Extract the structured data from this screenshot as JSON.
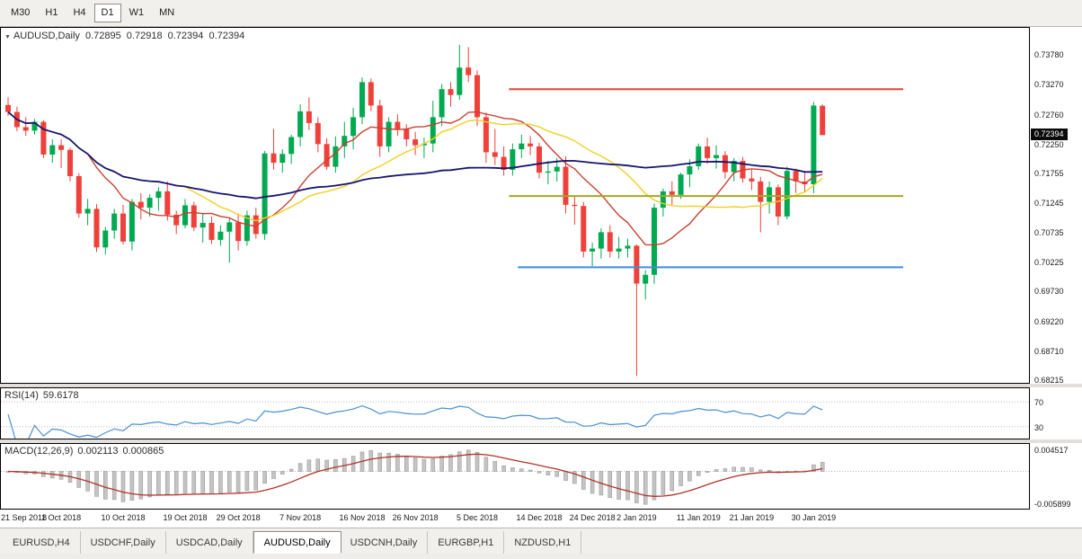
{
  "toolbar": {
    "timeframes": [
      {
        "label": "M30",
        "active": false
      },
      {
        "label": "H1",
        "active": false
      },
      {
        "label": "H4",
        "active": false
      },
      {
        "label": "D1",
        "active": true
      },
      {
        "label": "W1",
        "active": false
      },
      {
        "label": "MN",
        "active": false
      }
    ]
  },
  "chart": {
    "symbol": "AUDUSD,Daily",
    "open": "0.72895",
    "high": "0.72918",
    "low": "0.72394",
    "close": "0.72394",
    "current_price": "0.72394",
    "y_axis_labels": [
      "0.73780",
      "0.73270",
      "0.72760",
      "0.72250",
      "0.71755",
      "0.71245",
      "0.70735",
      "0.70225",
      "0.69730",
      "0.69220",
      "0.68710",
      "0.68215"
    ]
  },
  "chart_data": {
    "type": "candlestick",
    "price_range": [
      0.6812,
      0.7423
    ],
    "candle_up_color": "#00a950",
    "candle_down_color": "#ef403a",
    "candles": [
      [
        0.7291,
        0.7304,
        0.7272,
        0.7279
      ],
      [
        0.7279,
        0.7288,
        0.7246,
        0.7253
      ],
      [
        0.7253,
        0.727,
        0.7238,
        0.7247
      ],
      [
        0.7247,
        0.7267,
        0.724,
        0.7262
      ],
      [
        0.7262,
        0.7265,
        0.72,
        0.7206
      ],
      [
        0.7206,
        0.7232,
        0.7192,
        0.7222
      ],
      [
        0.7222,
        0.7232,
        0.7183,
        0.7214
      ],
      [
        0.7214,
        0.7218,
        0.716,
        0.7169
      ],
      [
        0.7169,
        0.7174,
        0.7098,
        0.7105
      ],
      [
        0.7105,
        0.713,
        0.7085,
        0.7113
      ],
      [
        0.7113,
        0.7121,
        0.7039,
        0.7047
      ],
      [
        0.7047,
        0.7082,
        0.7035,
        0.7076
      ],
      [
        0.7076,
        0.7113,
        0.7062,
        0.7105
      ],
      [
        0.7105,
        0.712,
        0.7052,
        0.7057
      ],
      [
        0.7057,
        0.713,
        0.7042,
        0.7125
      ],
      [
        0.7125,
        0.714,
        0.7095,
        0.7115
      ],
      [
        0.7115,
        0.7138,
        0.71,
        0.7132
      ],
      [
        0.7132,
        0.715,
        0.711,
        0.7143
      ],
      [
        0.7143,
        0.716,
        0.7093,
        0.7103
      ],
      [
        0.7103,
        0.711,
        0.707,
        0.7085
      ],
      [
        0.7085,
        0.713,
        0.708,
        0.7119
      ],
      [
        0.7119,
        0.7125,
        0.7075,
        0.7081
      ],
      [
        0.7081,
        0.7105,
        0.7055,
        0.7089
      ],
      [
        0.7089,
        0.71,
        0.7053,
        0.706
      ],
      [
        0.706,
        0.7085,
        0.705,
        0.7074
      ],
      [
        0.7074,
        0.7098,
        0.7021,
        0.709
      ],
      [
        0.709,
        0.7105,
        0.7042,
        0.7058
      ],
      [
        0.7058,
        0.711,
        0.705,
        0.7102
      ],
      [
        0.7102,
        0.7115,
        0.7062,
        0.707
      ],
      [
        0.707,
        0.7212,
        0.706,
        0.7208
      ],
      [
        0.7208,
        0.725,
        0.718,
        0.7192
      ],
      [
        0.7192,
        0.7215,
        0.7175,
        0.7207
      ],
      [
        0.7207,
        0.724,
        0.719,
        0.7236
      ],
      [
        0.7236,
        0.7292,
        0.722,
        0.728
      ],
      [
        0.728,
        0.7304,
        0.7248,
        0.726
      ],
      [
        0.726,
        0.727,
        0.721,
        0.7224
      ],
      [
        0.7224,
        0.7234,
        0.718,
        0.7185
      ],
      [
        0.7185,
        0.7237,
        0.7175,
        0.722
      ],
      [
        0.722,
        0.7262,
        0.72,
        0.7238
      ],
      [
        0.7238,
        0.7286,
        0.7215,
        0.727
      ],
      [
        0.727,
        0.7338,
        0.7258,
        0.733
      ],
      [
        0.733,
        0.7336,
        0.728,
        0.729
      ],
      [
        0.729,
        0.73,
        0.7202,
        0.722
      ],
      [
        0.722,
        0.727,
        0.721,
        0.7262
      ],
      [
        0.7262,
        0.7275,
        0.7238,
        0.725
      ],
      [
        0.725,
        0.7258,
        0.722,
        0.7232
      ],
      [
        0.7232,
        0.7245,
        0.7205,
        0.7222
      ],
      [
        0.7222,
        0.7235,
        0.72,
        0.7225
      ],
      [
        0.7225,
        0.7298,
        0.721,
        0.727
      ],
      [
        0.727,
        0.7327,
        0.7255,
        0.7318
      ],
      [
        0.7318,
        0.733,
        0.7288,
        0.7308
      ],
      [
        0.7308,
        0.7394,
        0.73,
        0.7355
      ],
      [
        0.7355,
        0.739,
        0.733,
        0.7342
      ],
      [
        0.7342,
        0.735,
        0.7255,
        0.727
      ],
      [
        0.727,
        0.7278,
        0.7192,
        0.721
      ],
      [
        0.721,
        0.725,
        0.7188,
        0.7202
      ],
      [
        0.7202,
        0.722,
        0.717,
        0.718
      ],
      [
        0.718,
        0.7225,
        0.717,
        0.7215
      ],
      [
        0.7215,
        0.724,
        0.72,
        0.7225
      ],
      [
        0.7225,
        0.7238,
        0.7205,
        0.722
      ],
      [
        0.722,
        0.7226,
        0.7165,
        0.7175
      ],
      [
        0.7175,
        0.7195,
        0.7155,
        0.7177
      ],
      [
        0.7177,
        0.72,
        0.716,
        0.7185
      ],
      [
        0.7185,
        0.7203,
        0.7105,
        0.712
      ],
      [
        0.712,
        0.7135,
        0.7086,
        0.7118
      ],
      [
        0.7118,
        0.7125,
        0.703,
        0.704
      ],
      [
        0.704,
        0.7055,
        0.7015,
        0.7045
      ],
      [
        0.7045,
        0.708,
        0.7028,
        0.7073
      ],
      [
        0.7073,
        0.7085,
        0.703,
        0.704
      ],
      [
        0.704,
        0.7065,
        0.7028,
        0.7045
      ],
      [
        0.7045,
        0.7062,
        0.703,
        0.705
      ],
      [
        0.705,
        0.7052,
        0.6827,
        0.6985
      ],
      [
        0.6985,
        0.7008,
        0.6958,
        0.7
      ],
      [
        0.7,
        0.7122,
        0.6985,
        0.7115
      ],
      [
        0.7115,
        0.7148,
        0.71,
        0.7143
      ],
      [
        0.7143,
        0.716,
        0.712,
        0.7137
      ],
      [
        0.7137,
        0.7175,
        0.713,
        0.7172
      ],
      [
        0.7172,
        0.7198,
        0.715,
        0.7186
      ],
      [
        0.7186,
        0.7225,
        0.718,
        0.722
      ],
      [
        0.722,
        0.7235,
        0.719,
        0.72
      ],
      [
        0.72,
        0.7222,
        0.7182,
        0.7205
      ],
      [
        0.7205,
        0.7212,
        0.7165,
        0.7176
      ],
      [
        0.7176,
        0.72,
        0.716,
        0.7195
      ],
      [
        0.7195,
        0.7202,
        0.7158,
        0.7165
      ],
      [
        0.7165,
        0.718,
        0.7145,
        0.716
      ],
      [
        0.716,
        0.7168,
        0.7073,
        0.7125
      ],
      [
        0.7125,
        0.716,
        0.7105,
        0.715
      ],
      [
        0.715,
        0.7155,
        0.7085,
        0.71
      ],
      [
        0.71,
        0.7185,
        0.7095,
        0.7178
      ],
      [
        0.7178,
        0.7182,
        0.714,
        0.716
      ],
      [
        0.716,
        0.7178,
        0.7142,
        0.7155
      ],
      [
        0.7155,
        0.7296,
        0.714,
        0.729
      ],
      [
        0.72895,
        0.72918,
        0.72394,
        0.72394
      ]
    ],
    "x_labels": [
      {
        "text": "21 Sep 2018",
        "index": 0
      },
      {
        "text": "1 Oct 2018",
        "index": 6
      },
      {
        "text": "10 Oct 2018",
        "index": 13
      },
      {
        "text": "19 Oct 2018",
        "index": 20
      },
      {
        "text": "29 Oct 2018",
        "index": 26
      },
      {
        "text": "7 Nov 2018",
        "index": 33
      },
      {
        "text": "16 Nov 2018",
        "index": 40
      },
      {
        "text": "26 Nov 2018",
        "index": 46
      },
      {
        "text": "5 Dec 2018",
        "index": 53
      },
      {
        "text": "14 Dec 2018",
        "index": 60
      },
      {
        "text": "24 Dec 2018",
        "index": 66
      },
      {
        "text": "2 Jan 2019",
        "index": 71
      },
      {
        "text": "11 Jan 2019",
        "index": 78
      },
      {
        "text": "21 Jan 2019",
        "index": 84
      },
      {
        "text": "30 Jan 2019",
        "index": 91
      }
    ],
    "overlays": [
      {
        "name": "ma-fast",
        "period": 10,
        "color": "#c8402f"
      },
      {
        "name": "ma-mid",
        "period": 21,
        "color": "#f0d020"
      },
      {
        "name": "ma-slow",
        "period": 50,
        "color": "#16166e"
      }
    ],
    "hlines": [
      {
        "name": "resistance-line",
        "price": 0.7318,
        "color": "#d6473d",
        "start_index": 57
      },
      {
        "name": "pivot-line",
        "price": 0.7135,
        "color": "#a3a821",
        "start_index": 57
      },
      {
        "name": "support-line",
        "price": 0.7013,
        "color": "#3e8ede",
        "start_index": 58
      }
    ]
  },
  "indicators": {
    "rsi": {
      "label": "RSI(14)",
      "value": "59.6178",
      "period": 14,
      "levels": [
        70,
        30
      ],
      "line_color": "#4a8fcf"
    },
    "macd": {
      "label": "MACD(12,26,9)",
      "value_main": "0.002113",
      "value_signal": "0.000865",
      "axis_labels": [
        "0.004517",
        "-0.005899"
      ],
      "signal_color": "#b23229",
      "histogram_color": "#c4c4c4"
    }
  },
  "tabs": [
    {
      "label": "EURUSD,H4",
      "active": false
    },
    {
      "label": "USDCHF,Daily",
      "active": false
    },
    {
      "label": "USDCAD,Daily",
      "active": false
    },
    {
      "label": "AUDUSD,Daily",
      "active": true
    },
    {
      "label": "USDCNH,Daily",
      "active": false
    },
    {
      "label": "EURGBP,H1",
      "active": false
    },
    {
      "label": "NZDUSD,H1",
      "active": false
    }
  ]
}
